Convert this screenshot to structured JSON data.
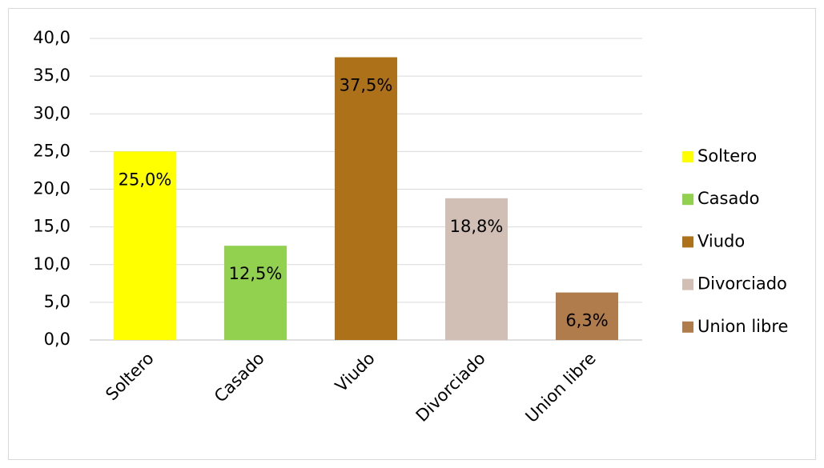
{
  "chart_data": {
    "type": "bar",
    "categories": [
      "Soltero",
      "Casado",
      "Viudo",
      "Divorciado",
      "Union libre"
    ],
    "values": [
      25.0,
      12.5,
      37.5,
      18.8,
      6.3
    ],
    "value_labels": [
      "25,0%",
      "12,5%",
      "37,5%",
      "18,8%",
      "6,3%"
    ],
    "colors": [
      "#ffff00",
      "#92d050",
      "#ad7219",
      "#d1bfb6",
      "#b07c4c"
    ],
    "ylim": [
      0,
      40
    ],
    "yticks": [
      {
        "value": 0,
        "label": "0,0"
      },
      {
        "value": 5,
        "label": "5,0"
      },
      {
        "value": 10,
        "label": "10,0"
      },
      {
        "value": 15,
        "label": "15,0"
      },
      {
        "value": 20,
        "label": "20,0"
      },
      {
        "value": 25,
        "label": "25,0"
      },
      {
        "value": 30,
        "label": "30,0"
      },
      {
        "value": 35,
        "label": "35,0"
      },
      {
        "value": 40,
        "label": "40,0"
      }
    ],
    "grid": true,
    "legend": "right"
  }
}
